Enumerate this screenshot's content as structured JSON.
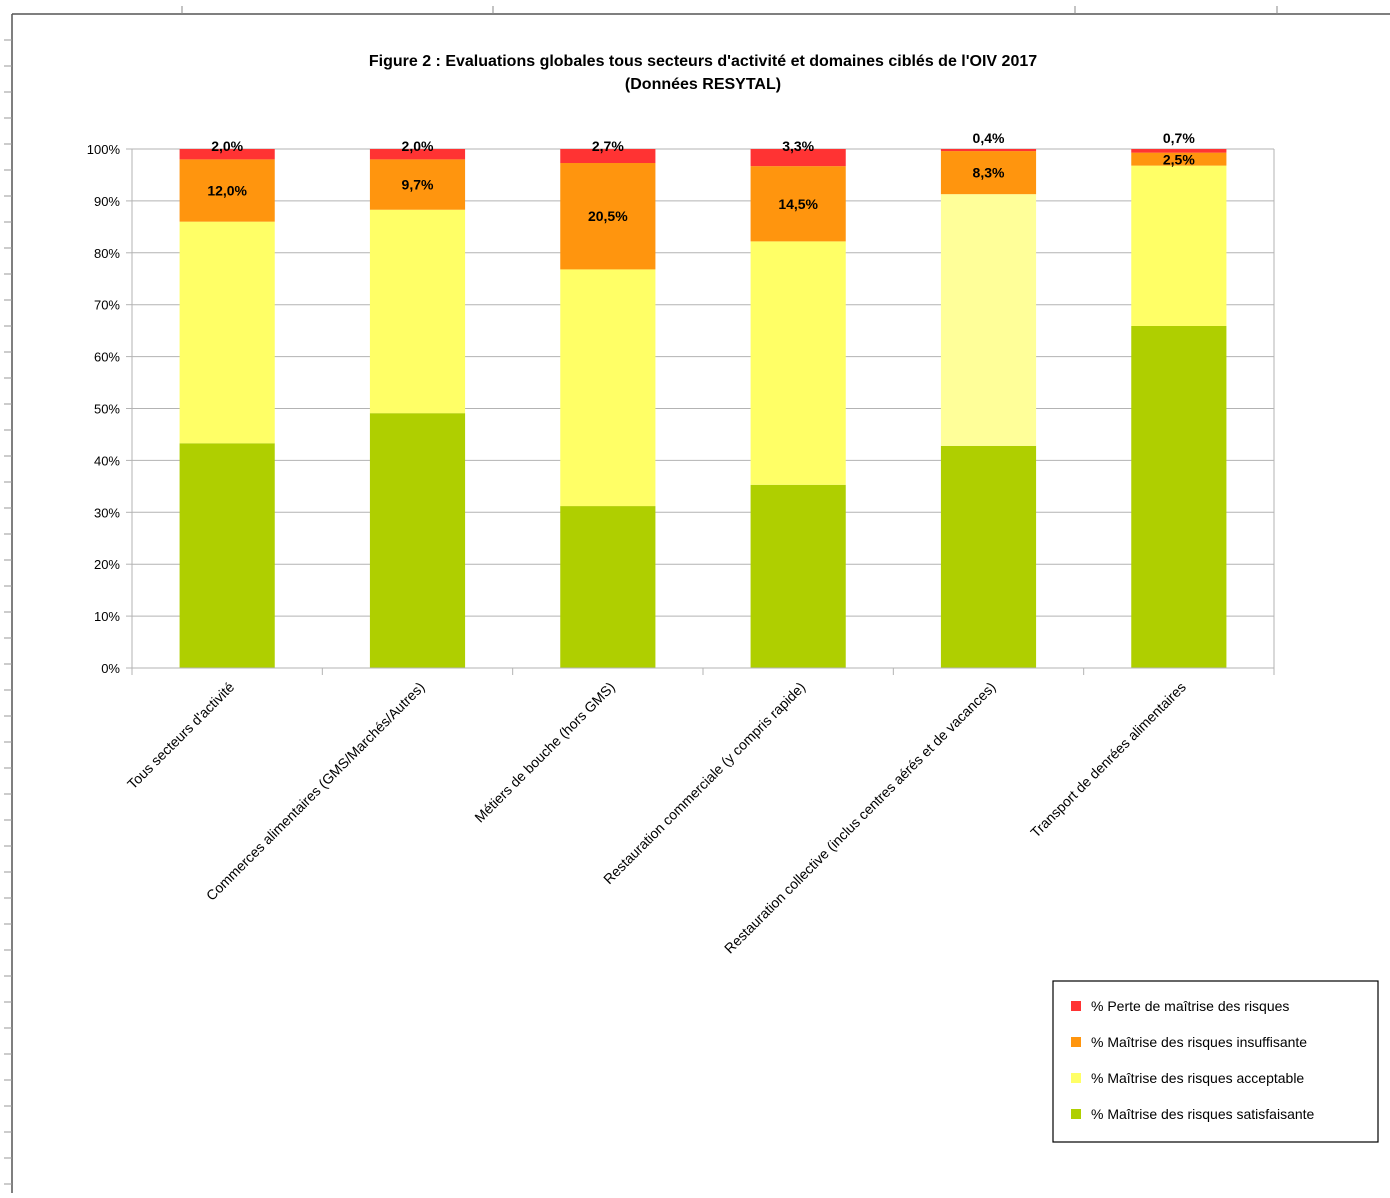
{
  "chart_data": {
    "type": "bar",
    "stacked": true,
    "title": "Figure 2 : Evaluations globales tous secteurs d'activité et domaines ciblés de l'OIV 2017",
    "subtitle": "(Données RESYTAL)",
    "xlabel": "",
    "ylabel": "",
    "ylim": [
      0,
      100
    ],
    "y_ticks": [
      "0%",
      "10%",
      "20%",
      "30%",
      "40%",
      "50%",
      "60%",
      "70%",
      "80%",
      "90%",
      "100%"
    ],
    "grid": true,
    "legend_position": "bottom-right",
    "categories": [
      "Tous secteurs d'activité",
      "Commerces alimentaires (GMS/Marchés/Autres)",
      "Métiers de bouche (hors GMS)",
      "Restauration commerciale (y compris rapide)",
      "Restauration collective (inclus centres aérés et de vacances)",
      "Transport de denrées alimentaires"
    ],
    "series": [
      {
        "name": "% Maîtrise des risques satisfaisante",
        "color": "#afcf00",
        "values": [
          43.3,
          49.1,
          31.2,
          35.3,
          42.8,
          65.9
        ],
        "labels": [
          "",
          "",
          "",
          "",
          "",
          ""
        ]
      },
      {
        "name": "% Maîtrise des risques acceptable",
        "color": "#ffff66",
        "values": [
          42.7,
          39.2,
          45.6,
          46.9,
          48.5,
          30.9
        ],
        "labels": [
          "",
          "",
          "",
          "",
          "",
          ""
        ]
      },
      {
        "name": "% Maîtrise des risques insuffisante",
        "color": "#ff950e",
        "values": [
          12.0,
          9.7,
          20.5,
          14.5,
          8.3,
          2.5
        ],
        "labels": [
          "12,0%",
          "9,7%",
          "20,5%",
          "14,5%",
          "8,3%",
          "2,5%"
        ]
      },
      {
        "name": "% Perte de maîtrise des risques",
        "color": "#ff3333",
        "values": [
          2.0,
          2.0,
          2.7,
          3.3,
          0.4,
          0.7
        ],
        "labels": [
          "2,0%",
          "2,0%",
          "2,7%",
          "3,3%",
          "0,4%",
          "0,7%"
        ]
      }
    ],
    "bar_fill_overrides": [
      {
        "series": 1,
        "category": 4,
        "color": "#ffff99"
      }
    ]
  }
}
